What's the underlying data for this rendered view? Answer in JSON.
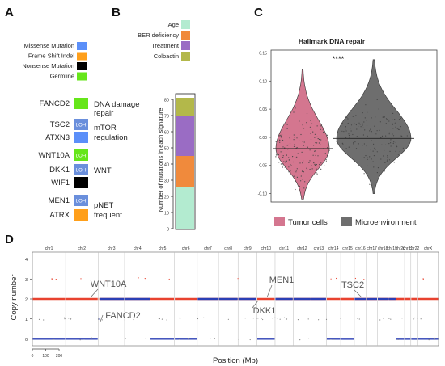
{
  "panels": {
    "a": "A",
    "b": "B",
    "c": "C",
    "d": "D"
  },
  "colors": {
    "missense": "#5b8ff9",
    "frameshift": "#ff9f1a",
    "nonsense": "#000000",
    "germline": "#66e61a",
    "loh": "#6a8fdc",
    "age": "#b3ebd0",
    "ber": "#f08a3c",
    "treatment": "#9a6cc4",
    "colbactin": "#b3b84a",
    "tumor": "#d4768f",
    "micro": "#6e6e6e",
    "gain": "#e8422f",
    "loss": "#2b3fb5"
  },
  "panel_a": {
    "legend": [
      {
        "label": "Missense Mutation",
        "color": "#5b8ff9"
      },
      {
        "label": "Frame Shift Indel",
        "color": "#ff9f1a"
      },
      {
        "label": "Nonsense Mutation",
        "color": "#000000"
      },
      {
        "label": "Germline",
        "color": "#66e61a"
      }
    ],
    "genes": [
      {
        "gene": "FANCD2",
        "color": "#66e61a",
        "loh": ""
      },
      {
        "gene": "TSC2",
        "color": "#6a8fdc",
        "loh": "LOH"
      },
      {
        "gene": "ATXN3",
        "color": "#5b8ff9",
        "loh": ""
      },
      {
        "gene": "WNT10A",
        "color": "#66e61a",
        "loh": "LOH"
      },
      {
        "gene": "DKK1",
        "color": "#6a8fdc",
        "loh": "LOH"
      },
      {
        "gene": "WIF1",
        "color": "#000000",
        "loh": ""
      },
      {
        "gene": "MEN1",
        "color": "#6a8fdc",
        "loh": "LOH"
      },
      {
        "gene": "ATRX",
        "color": "#ff9f1a",
        "loh": ""
      }
    ],
    "pathways": {
      "dna1": "DNA damage",
      "dna2": "repair",
      "mtor1": "mTOR",
      "mtor2": "regulation",
      "wnt": "WNT",
      "pnet1": "pNET",
      "pnet2": "frequent"
    }
  },
  "panel_b": {
    "legend": [
      {
        "label": "Age",
        "color": "#b3ebd0"
      },
      {
        "label": "BER deficiency",
        "color": "#f08a3c"
      },
      {
        "label": "Treatment",
        "color": "#9a6cc4"
      },
      {
        "label": "Colbactin",
        "color": "#b3b84a"
      }
    ],
    "ylabel": "Number of mutations in each signature",
    "ticks": [
      "0",
      "10",
      "20",
      "30",
      "40",
      "50",
      "60",
      "70",
      "80"
    ],
    "chart_data": {
      "type": "bar",
      "categories": [
        ""
      ],
      "series": [
        {
          "name": "Age",
          "values": [
            26
          ]
        },
        {
          "name": "BER deficiency",
          "values": [
            19
          ]
        },
        {
          "name": "Treatment",
          "values": [
            25
          ]
        },
        {
          "name": "Colbactin",
          "values": [
            11
          ]
        }
      ],
      "ylim": [
        0,
        84
      ]
    }
  },
  "panel_c": {
    "title": "Hallmark DNA repair",
    "signif": "****",
    "ticks": [
      "0.15",
      "0.10",
      "0.05",
      "0.00",
      "-0.05",
      "-0.10"
    ],
    "legend": [
      {
        "label": "Tumor cells",
        "color": "#d4768f"
      },
      {
        "label": "Microenvironment",
        "color": "#6e6e6e"
      }
    ],
    "chart_data": {
      "type": "violin",
      "ylim": [
        -0.115,
        0.155
      ],
      "series": [
        {
          "name": "Tumor cells",
          "median": -0.02,
          "min": -0.11,
          "max": 0.12
        },
        {
          "name": "Microenvironment",
          "median": -0.002,
          "min": -0.1,
          "max": 0.138
        }
      ]
    }
  },
  "panel_d": {
    "ylabel": "Copy number",
    "xlabel": "Position (Mb)",
    "yticks": [
      "0",
      "1",
      "2",
      "3",
      "4"
    ],
    "scale_ticks": [
      "0",
      "100",
      "200"
    ],
    "chromosomes": [
      "chr1",
      "chr2",
      "chr3",
      "chr4",
      "chr5",
      "chr6",
      "chr7",
      "chr8",
      "chr9",
      "chr10",
      "chr11",
      "chr12",
      "chr13",
      "chr14",
      "chr15",
      "chr16",
      "chr17",
      "chr18",
      "chr19",
      "chr20",
      "chr21",
      "chr22",
      "chrX"
    ],
    "chrom_sizes": [
      249,
      243,
      198,
      191,
      182,
      171,
      159,
      146,
      141,
      136,
      135,
      134,
      115,
      107,
      102,
      90,
      83,
      80,
      59,
      64,
      47,
      51,
      156
    ],
    "annotations": [
      {
        "label": "WNT10A"
      },
      {
        "label": "FANCD2"
      },
      {
        "label": "MEN1"
      },
      {
        "label": "DKK1"
      },
      {
        "label": "TSC2"
      }
    ],
    "chart_data": {
      "type": "line",
      "description_values": "segment copy numbers per chromosome region",
      "segments": [
        {
          "chrom": "chr1",
          "start": 0,
          "end": 249,
          "gain": 2,
          "loss": 0
        },
        {
          "chrom": "chr2",
          "start": 0,
          "end": 243,
          "gain": 2,
          "loss": 0
        },
        {
          "chrom": "chr3",
          "start": 0,
          "end": 10,
          "gain": 2,
          "loss": 1
        },
        {
          "chrom": "chr3",
          "start": 10,
          "end": 198,
          "gain": 2,
          "loss": 2
        },
        {
          "chrom": "chr4",
          "start": 0,
          "end": 191,
          "gain": 2,
          "loss": 2
        },
        {
          "chrom": "chr5",
          "start": 0,
          "end": 182,
          "gain": 2,
          "loss": 0
        },
        {
          "chrom": "chr6",
          "start": 0,
          "end": 171,
          "gain": 2,
          "loss": 0
        },
        {
          "chrom": "chr7",
          "start": 0,
          "end": 159,
          "gain": 2,
          "loss": 2
        },
        {
          "chrom": "chr8",
          "start": 0,
          "end": 146,
          "gain": 2,
          "loss": 2
        },
        {
          "chrom": "chr9",
          "start": 0,
          "end": 141,
          "gain": 2,
          "loss": 2
        },
        {
          "chrom": "chr10",
          "start": 0,
          "end": 136,
          "gain": 2,
          "loss": 0
        },
        {
          "chrom": "chr11",
          "start": 0,
          "end": 135,
          "gain": 2,
          "loss": 2
        },
        {
          "chrom": "chr12",
          "start": 0,
          "end": 134,
          "gain": 2,
          "loss": 2
        },
        {
          "chrom": "chr13",
          "start": 0,
          "end": 115,
          "gain": 2,
          "loss": 2
        },
        {
          "chrom": "chr14",
          "start": 0,
          "end": 107,
          "gain": 2,
          "loss": 0
        },
        {
          "chrom": "chr15",
          "start": 0,
          "end": 102,
          "gain": 2,
          "loss": 0
        },
        {
          "chrom": "chr16",
          "start": 0,
          "end": 90,
          "gain": 2,
          "loss": 2
        },
        {
          "chrom": "chr17",
          "start": 0,
          "end": 83,
          "gain": 2,
          "loss": 2
        },
        {
          "chrom": "chr18",
          "start": 0,
          "end": 80,
          "gain": 2,
          "loss": 2
        },
        {
          "chrom": "chr19",
          "start": 0,
          "end": 59,
          "gain": 2,
          "loss": 2
        },
        {
          "chrom": "chr20",
          "start": 0,
          "end": 64,
          "gain": 2,
          "loss": 0
        },
        {
          "chrom": "chr21",
          "start": 0,
          "end": 47,
          "gain": 2,
          "loss": 0
        },
        {
          "chrom": "chr22",
          "start": 0,
          "end": 51,
          "gain": 2,
          "loss": 0
        },
        {
          "chrom": "chrX",
          "start": 0,
          "end": 156,
          "gain": 2,
          "loss": 0
        }
      ]
    }
  }
}
